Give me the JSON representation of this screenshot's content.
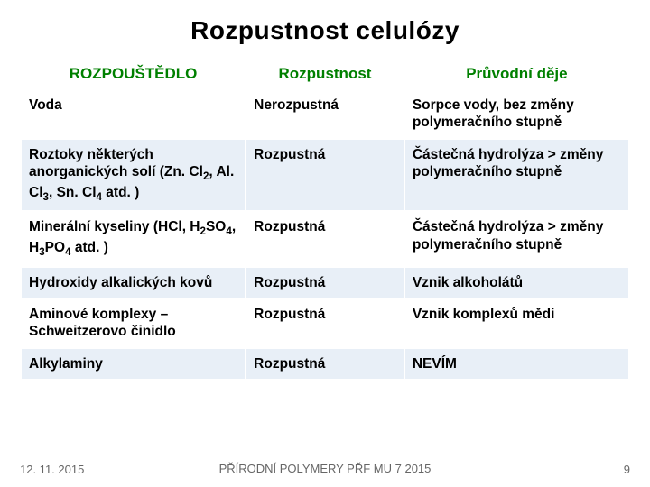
{
  "title": "Rozpustnost celulózy",
  "columns": [
    "ROZPOUŠTĚDLO",
    "Rozpustnost",
    "Průvodní děje"
  ],
  "rows": [
    {
      "solvent_html": "Voda",
      "solubility": "Nerozpustná",
      "effects": "Sorpce vody, bez změny polymeračního stupně"
    },
    {
      "solvent_html": "Roztoky některých anorganických solí (Zn. Cl<sub>2</sub>, Al. Cl<sub>3</sub>, Sn. Cl<sub>4</sub> atd. )",
      "solubility": "Rozpustná",
      "effects": "Částečná hydrolýza > změny polymeračního stupně"
    },
    {
      "solvent_html": "Minerální kyseliny (HCl, H<sub>2</sub>SO<sub>4</sub>, H<sub>3</sub>PO<sub>4</sub> atd. )",
      "solubility": "Rozpustná",
      "effects": "Částečná hydrolýza > změny polymeračního stupně"
    },
    {
      "solvent_html": "Hydroxidy  alkalických kovů",
      "solubility": "Rozpustná",
      "effects": "Vznik alkoholátů"
    },
    {
      "solvent_html": "Aminové komplexy – Schweitzerovo činidlo",
      "solubility": "Rozpustná",
      "effects": "Vznik  komplexů mědi"
    },
    {
      "solvent_html": "Alkylaminy",
      "solubility": "Rozpustná",
      "effects": "NEVÍM"
    }
  ],
  "footer": {
    "date": "12. 11. 2015",
    "center": "PŘÍRODNÍ POLYMERY PŘF MU 7 2015",
    "page": "9"
  },
  "colors": {
    "header_text": "#008000",
    "odd_row_bg": "#e8eff7",
    "text": "#000000",
    "footer_text": "#666666",
    "background": "#ffffff"
  },
  "col_widths": [
    "37%",
    "26%",
    "37%"
  ]
}
